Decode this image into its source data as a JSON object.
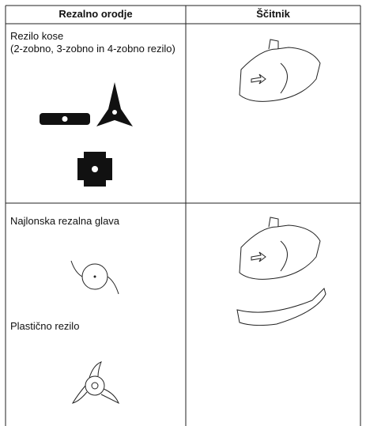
{
  "table": {
    "header": [
      "Rezalno orodje",
      "Ščitnik"
    ],
    "rows": [
      {
        "title": "Rezilo kose",
        "subtitle": "(2-zobno, 3-zobno in 4-zobno rezilo)"
      },
      {
        "title": "Najlonska rezalna glava",
        "subtitle": "Plastično rezilo"
      }
    ]
  }
}
